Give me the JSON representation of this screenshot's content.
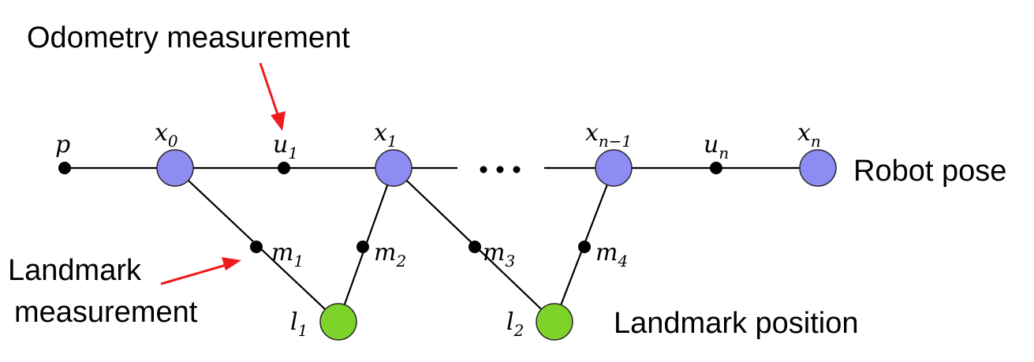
{
  "annotations": {
    "odometry": "Odometry measurement",
    "landmark_measurement_line1": "Landmark",
    "landmark_measurement_line2": "measurement",
    "robot_pose": "Robot pose",
    "landmark_position": "Landmark position"
  },
  "nodes": {
    "p": {
      "base": "p",
      "sub": ""
    },
    "x0": {
      "base": "x",
      "sub": "0"
    },
    "u1": {
      "base": "u",
      "sub": "1"
    },
    "x1": {
      "base": "x",
      "sub": "1"
    },
    "x_n_minus_1": {
      "base": "x",
      "sub": "n−1"
    },
    "u_n": {
      "base": "u",
      "sub": "n"
    },
    "x_n": {
      "base": "x",
      "sub": "n"
    },
    "m1": {
      "base": "m",
      "sub": "1"
    },
    "m2": {
      "base": "m",
      "sub": "2"
    },
    "m3": {
      "base": "m",
      "sub": "3"
    },
    "m4": {
      "base": "m",
      "sub": "4"
    },
    "l1": {
      "base": "l",
      "sub": "1"
    },
    "l2": {
      "base": "l",
      "sub": "2"
    }
  },
  "colors": {
    "pose": "#8c8cf2",
    "landmark": "#7ed32b",
    "arrow": "#ee1c1c"
  }
}
